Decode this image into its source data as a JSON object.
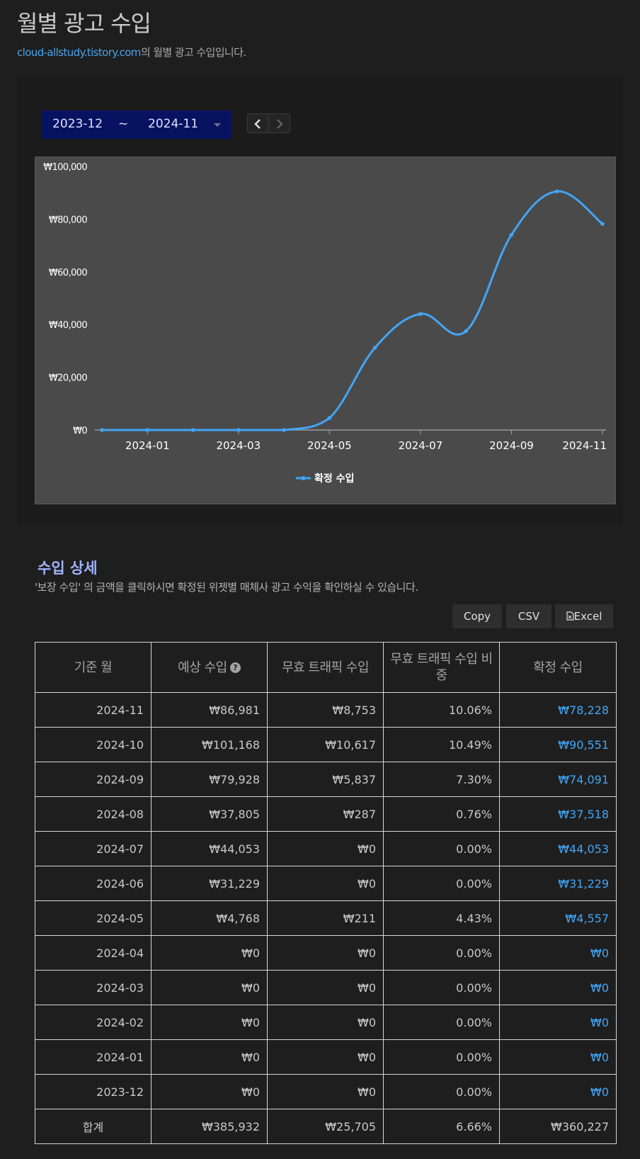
{
  "page": {
    "title": "월별 광고 수입",
    "domain": "cloud-allstudy.tistory.com",
    "subtitle_suffix": "의 월별 광고 수입입니다."
  },
  "range": {
    "start": "2023-12",
    "separator": "~",
    "end": "2024-11",
    "prev_icon": "chevron-left-icon",
    "next_icon": "chevron-right-icon"
  },
  "chart_data": {
    "type": "line",
    "x": [
      "2023-12",
      "2024-01",
      "2024-02",
      "2024-03",
      "2024-04",
      "2024-05",
      "2024-06",
      "2024-07",
      "2024-08",
      "2024-09",
      "2024-10",
      "2024-11"
    ],
    "tick_labels": [
      "2024-01",
      "2024-03",
      "2024-05",
      "2024-07",
      "2024-09",
      "2024-11"
    ],
    "series": [
      {
        "name": "확정 수입",
        "values": [
          0,
          0,
          0,
          0,
          0,
          4557,
          31229,
          44053,
          37518,
          74091,
          90551,
          78228
        ],
        "color": "#42a5f5"
      }
    ],
    "ylim": [
      0,
      100000
    ],
    "y_ticks": [
      "₩0",
      "₩20,000",
      "₩40,000",
      "₩60,000",
      "₩80,000",
      "₩100,000"
    ],
    "y_tick_values": [
      0,
      20000,
      40000,
      60000,
      80000,
      100000
    ],
    "legend_position": "bottom-center",
    "grid": false
  },
  "details": {
    "title": "수입 상세",
    "description": "'보장 수입' 의 금액을 클릭하시면 확정된 위젯별 매체사 광고 수익을 확인하실 수 있습니다.",
    "buttons": {
      "copy": "Copy",
      "csv": "CSV",
      "excel": "Excel"
    },
    "columns": [
      "기준 월",
      "예상 수입",
      "무효 트래픽 수입",
      "무효 트래픽 수입 비중",
      "확정 수입"
    ],
    "rows": [
      [
        "2024-11",
        "₩86,981",
        "₩8,753",
        "10.06%",
        "₩78,228"
      ],
      [
        "2024-10",
        "₩101,168",
        "₩10,617",
        "10.49%",
        "₩90,551"
      ],
      [
        "2024-09",
        "₩79,928",
        "₩5,837",
        "7.30%",
        "₩74,091"
      ],
      [
        "2024-08",
        "₩37,805",
        "₩287",
        "0.76%",
        "₩37,518"
      ],
      [
        "2024-07",
        "₩44,053",
        "₩0",
        "0.00%",
        "₩44,053"
      ],
      [
        "2024-06",
        "₩31,229",
        "₩0",
        "0.00%",
        "₩31,229"
      ],
      [
        "2024-05",
        "₩4,768",
        "₩211",
        "4.43%",
        "₩4,557"
      ],
      [
        "2024-04",
        "₩0",
        "₩0",
        "0.00%",
        "₩0"
      ],
      [
        "2024-03",
        "₩0",
        "₩0",
        "0.00%",
        "₩0"
      ],
      [
        "2024-02",
        "₩0",
        "₩0",
        "0.00%",
        "₩0"
      ],
      [
        "2024-01",
        "₩0",
        "₩0",
        "0.00%",
        "₩0"
      ],
      [
        "2023-12",
        "₩0",
        "₩0",
        "0.00%",
        "₩0"
      ]
    ],
    "total": [
      "합계",
      "₩385,932",
      "₩25,705",
      "6.66%",
      "₩360,227"
    ]
  }
}
